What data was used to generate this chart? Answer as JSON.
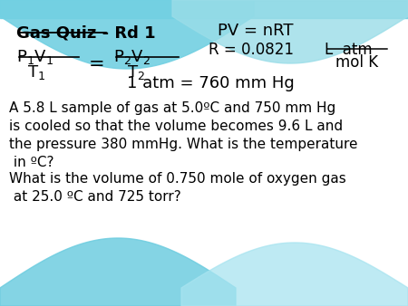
{
  "bg_color": "#ffffff",
  "teal_color": "#6ecde0",
  "teal_color2": "#a8e4f0",
  "title_text": "Gas Quiz - Rd 1",
  "pv_eq": "PV = nRT",
  "r_line": "R = 0.0821",
  "r_units_top": "L  atm",
  "r_units_bot": "mol K",
  "atm_eq": "1 atm = 760 mm Hg",
  "q1_line1": "A 5.8 L sample of gas at 5.0ºC and 750 mm Hg",
  "q1_line2": "is cooled so that the volume becomes 9.6 L and",
  "q1_line3": "the pressure 380 mmHg. What is the temperature",
  "q1_line4": " in ºC?",
  "q2_line1": "What is the volume of 0.750 mole of oxygen gas",
  "q2_line2": " at 25.0 ºC and 725 torr?",
  "title_fontsize": 13,
  "formula_fontsize": 12,
  "body_fontsize": 11
}
